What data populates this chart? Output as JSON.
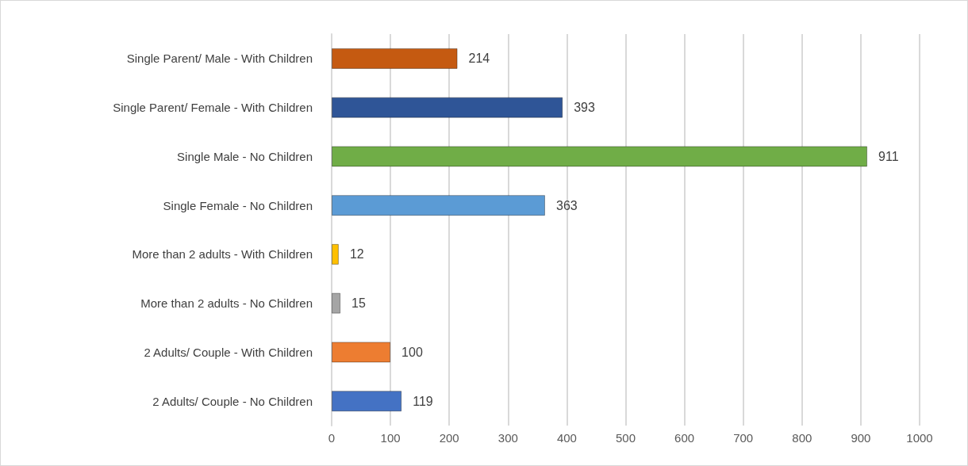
{
  "chart_data": {
    "type": "bar",
    "orientation": "horizontal",
    "categories": [
      "Single Parent/ Male - With Children",
      "Single Parent/ Female - With Children",
      "Single Male - No Children",
      "Single Female - No Children",
      "More than 2 adults - With Children",
      "More than 2 adults - No Children",
      "2 Adults/ Couple - With Children",
      "2 Adults/ Couple - No Children"
    ],
    "values": [
      214,
      393,
      911,
      363,
      12,
      15,
      100,
      119
    ],
    "colors": [
      "#c55a11",
      "#2f5597",
      "#70ad47",
      "#5b9bd5",
      "#ffc000",
      "#a5a5a5",
      "#ed7d31",
      "#4472c4"
    ],
    "xlim": [
      0,
      1000
    ],
    "xticks": [
      0,
      100,
      200,
      300,
      400,
      500,
      600,
      700,
      800,
      900,
      1000
    ],
    "grid": "x",
    "data_labels": true
  }
}
